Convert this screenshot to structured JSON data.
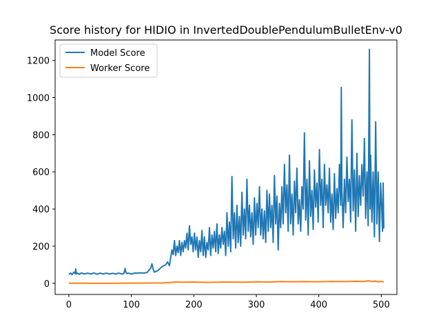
{
  "chart_data": {
    "type": "line",
    "title": "Score history for HIDIO in InvertedDoublePendulumBulletEnv-v0",
    "xlabel": "",
    "ylabel": "",
    "xlim": [
      -22,
      525
    ],
    "ylim": [
      -60,
      1310
    ],
    "x_ticks": [
      0,
      100,
      200,
      300,
      400,
      500
    ],
    "y_ticks": [
      0,
      200,
      400,
      600,
      800,
      1000,
      1200
    ],
    "grid": false,
    "legend_position": "top-left",
    "series": [
      {
        "name": "Model Score",
        "color": "#1f77b4",
        "points": [
          [
            0,
            48
          ],
          [
            3,
            55
          ],
          [
            5,
            47
          ],
          [
            8,
            60
          ],
          [
            10,
            52
          ],
          [
            11,
            78
          ],
          [
            12,
            50
          ],
          [
            14,
            55
          ],
          [
            17,
            48
          ],
          [
            20,
            56
          ],
          [
            25,
            50
          ],
          [
            30,
            55
          ],
          [
            35,
            50
          ],
          [
            40,
            56
          ],
          [
            45,
            49
          ],
          [
            50,
            55
          ],
          [
            55,
            50
          ],
          [
            60,
            55
          ],
          [
            65,
            50
          ],
          [
            70,
            54
          ],
          [
            75,
            50
          ],
          [
            80,
            55
          ],
          [
            85,
            50
          ],
          [
            88,
            52
          ],
          [
            90,
            80
          ],
          [
            91,
            60
          ],
          [
            93,
            52
          ],
          [
            95,
            55
          ],
          [
            100,
            50
          ],
          [
            105,
            55
          ],
          [
            110,
            55
          ],
          [
            115,
            56
          ],
          [
            120,
            55
          ],
          [
            125,
            58
          ],
          [
            128,
            70
          ],
          [
            131,
            82
          ],
          [
            133,
            105
          ],
          [
            135,
            75
          ],
          [
            137,
            60
          ],
          [
            140,
            65
          ],
          [
            143,
            70
          ],
          [
            146,
            80
          ],
          [
            149,
            90
          ],
          [
            152,
            95
          ],
          [
            155,
            100
          ],
          [
            158,
            115
          ],
          [
            161,
            95
          ],
          [
            163,
            140
          ],
          [
            165,
            180
          ],
          [
            167,
            155
          ],
          [
            169,
            230
          ],
          [
            171,
            150
          ],
          [
            173,
            200
          ],
          [
            175,
            165
          ],
          [
            177,
            230
          ],
          [
            179,
            150
          ],
          [
            181,
            220
          ],
          [
            183,
            170
          ],
          [
            185,
            230
          ],
          [
            187,
            190
          ],
          [
            189,
            270
          ],
          [
            191,
            180
          ],
          [
            193,
            310
          ],
          [
            195,
            210
          ],
          [
            197,
            250
          ],
          [
            199,
            170
          ],
          [
            201,
            270
          ],
          [
            203,
            180
          ],
          [
            205,
            250
          ],
          [
            207,
            140
          ],
          [
            209,
            230
          ],
          [
            211,
            170
          ],
          [
            213,
            285
          ],
          [
            215,
            150
          ],
          [
            217,
            250
          ],
          [
            219,
            140
          ],
          [
            221,
            220
          ],
          [
            223,
            180
          ],
          [
            225,
            300
          ],
          [
            227,
            150
          ],
          [
            229,
            260
          ],
          [
            231,
            190
          ],
          [
            233,
            280
          ],
          [
            235,
            170
          ],
          [
            237,
            320
          ],
          [
            239,
            160
          ],
          [
            241,
            260
          ],
          [
            243,
            190
          ],
          [
            245,
            300
          ],
          [
            247,
            210
          ],
          [
            249,
            280
          ],
          [
            251,
            150
          ],
          [
            253,
            380
          ],
          [
            255,
            200
          ],
          [
            257,
            330
          ],
          [
            259,
            170
          ],
          [
            261,
            575
          ],
          [
            263,
            240
          ],
          [
            265,
            380
          ],
          [
            267,
            190
          ],
          [
            269,
            420
          ],
          [
            271,
            220
          ],
          [
            273,
            360
          ],
          [
            275,
            200
          ],
          [
            277,
            490
          ],
          [
            279,
            260
          ],
          [
            281,
            400
          ],
          [
            283,
            240
          ],
          [
            285,
            560
          ],
          [
            287,
            280
          ],
          [
            289,
            420
          ],
          [
            291,
            250
          ],
          [
            293,
            380
          ],
          [
            295,
            210
          ],
          [
            297,
            460
          ],
          [
            299,
            260
          ],
          [
            301,
            430
          ],
          [
            303,
            300
          ],
          [
            305,
            520
          ],
          [
            307,
            260
          ],
          [
            309,
            400
          ],
          [
            311,
            240
          ],
          [
            313,
            390
          ],
          [
            315,
            220
          ],
          [
            317,
            500
          ],
          [
            319,
            280
          ],
          [
            321,
            480
          ],
          [
            323,
            300
          ],
          [
            325,
            420
          ],
          [
            327,
            220
          ],
          [
            329,
            580
          ],
          [
            331,
            320
          ],
          [
            333,
            470
          ],
          [
            335,
            180
          ],
          [
            337,
            430
          ],
          [
            339,
            300
          ],
          [
            341,
            520
          ],
          [
            343,
            320
          ],
          [
            345,
            640
          ],
          [
            347,
            380
          ],
          [
            349,
            530
          ],
          [
            351,
            280
          ],
          [
            353,
            690
          ],
          [
            355,
            320
          ],
          [
            357,
            480
          ],
          [
            359,
            260
          ],
          [
            361,
            550
          ],
          [
            363,
            380
          ],
          [
            365,
            620
          ],
          [
            367,
            320
          ],
          [
            369,
            450
          ],
          [
            371,
            280
          ],
          [
            373,
            520
          ],
          [
            375,
            400
          ],
          [
            377,
            810
          ],
          [
            379,
            340
          ],
          [
            381,
            560
          ],
          [
            383,
            260
          ],
          [
            385,
            660
          ],
          [
            387,
            360
          ],
          [
            389,
            500
          ],
          [
            391,
            290
          ],
          [
            393,
            610
          ],
          [
            395,
            410
          ],
          [
            397,
            540
          ],
          [
            399,
            330
          ],
          [
            401,
            720
          ],
          [
            403,
            420
          ],
          [
            405,
            560
          ],
          [
            407,
            300
          ],
          [
            409,
            640
          ],
          [
            411,
            420
          ],
          [
            413,
            530
          ],
          [
            415,
            380
          ],
          [
            417,
            620
          ],
          [
            419,
            330
          ],
          [
            421,
            480
          ],
          [
            423,
            290
          ],
          [
            425,
            590
          ],
          [
            427,
            350
          ],
          [
            429,
            510
          ],
          [
            431,
            380
          ],
          [
            433,
            640
          ],
          [
            435,
            420
          ],
          [
            436,
            1055
          ],
          [
            437,
            500
          ],
          [
            439,
            300
          ],
          [
            441,
            560
          ],
          [
            443,
            380
          ],
          [
            445,
            680
          ],
          [
            447,
            440
          ],
          [
            449,
            560
          ],
          [
            451,
            330
          ],
          [
            453,
            880
          ],
          [
            455,
            390
          ],
          [
            457,
            610
          ],
          [
            459,
            280
          ],
          [
            461,
            700
          ],
          [
            463,
            360
          ],
          [
            465,
            580
          ],
          [
            467,
            420
          ],
          [
            469,
            640
          ],
          [
            471,
            470
          ],
          [
            473,
            780
          ],
          [
            475,
            350
          ],
          [
            477,
            600
          ],
          [
            479,
            310
          ],
          [
            481,
            1260
          ],
          [
            482,
            400
          ],
          [
            483,
            690
          ],
          [
            485,
            330
          ],
          [
            487,
            600
          ],
          [
            489,
            250
          ],
          [
            491,
            870
          ],
          [
            493,
            320
          ],
          [
            495,
            600
          ],
          [
            497,
            225
          ],
          [
            499,
            540
          ],
          [
            501,
            380
          ],
          [
            502,
            280
          ],
          [
            503,
            540
          ],
          [
            504,
            295
          ]
        ]
      },
      {
        "name": "Worker Score",
        "color": "#ff7f0e",
        "points": [
          [
            0,
            1
          ],
          [
            50,
            0
          ],
          [
            100,
            1
          ],
          [
            150,
            2
          ],
          [
            165,
            5
          ],
          [
            170,
            8
          ],
          [
            180,
            6
          ],
          [
            200,
            7
          ],
          [
            220,
            5
          ],
          [
            250,
            7
          ],
          [
            280,
            6
          ],
          [
            300,
            8
          ],
          [
            320,
            7
          ],
          [
            340,
            9
          ],
          [
            360,
            8
          ],
          [
            380,
            9
          ],
          [
            400,
            8
          ],
          [
            420,
            10
          ],
          [
            440,
            9
          ],
          [
            460,
            11
          ],
          [
            470,
            9
          ],
          [
            480,
            14
          ],
          [
            485,
            9
          ],
          [
            490,
            12
          ],
          [
            495,
            8
          ],
          [
            500,
            10
          ],
          [
            504,
            7
          ]
        ]
      }
    ]
  }
}
